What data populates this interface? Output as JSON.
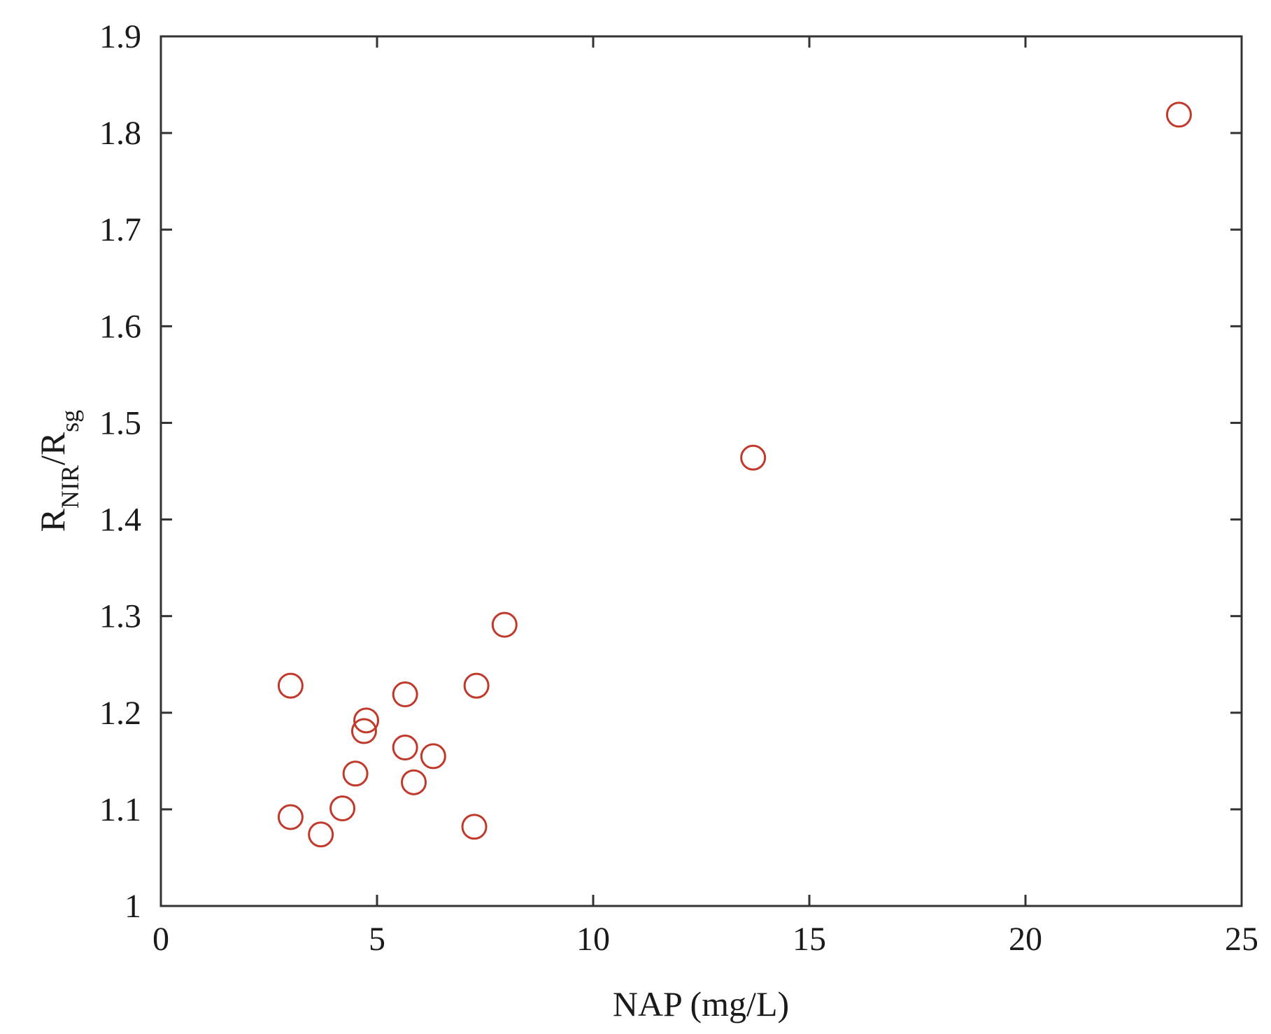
{
  "chart_data": {
    "type": "scatter",
    "title": "",
    "xlabel": "NAP (mg/L)",
    "ylabel": {
      "parts": [
        {
          "text": "R",
          "sub": false
        },
        {
          "text": "NIR",
          "sub": true
        },
        {
          "text": "/R",
          "sub": false
        },
        {
          "text": "sg",
          "sub": true
        }
      ]
    },
    "xlim": [
      0,
      25
    ],
    "ylim": [
      1,
      1.9
    ],
    "xticks": [
      "0",
      "5",
      "10",
      "15",
      "20",
      "25"
    ],
    "yticks": [
      "1",
      "1.1",
      "1.2",
      "1.3",
      "1.4",
      "1.5",
      "1.6",
      "1.7",
      "1.8",
      "1.9"
    ],
    "grid": false,
    "marker": "open-circle",
    "series": [
      {
        "color": "#c0392b",
        "points": [
          {
            "x": 3.0,
            "y": 1.228
          },
          {
            "x": 3.0,
            "y": 1.092
          },
          {
            "x": 3.7,
            "y": 1.074
          },
          {
            "x": 4.2,
            "y": 1.101
          },
          {
            "x": 4.5,
            "y": 1.137
          },
          {
            "x": 4.7,
            "y": 1.181
          },
          {
            "x": 4.75,
            "y": 1.192
          },
          {
            "x": 5.65,
            "y": 1.219
          },
          {
            "x": 5.65,
            "y": 1.164
          },
          {
            "x": 5.85,
            "y": 1.128
          },
          {
            "x": 6.3,
            "y": 1.155
          },
          {
            "x": 7.3,
            "y": 1.228
          },
          {
            "x": 7.25,
            "y": 1.082
          },
          {
            "x": 7.95,
            "y": 1.291
          },
          {
            "x": 13.7,
            "y": 1.464
          },
          {
            "x": 23.55,
            "y": 1.819
          }
        ]
      }
    ]
  }
}
